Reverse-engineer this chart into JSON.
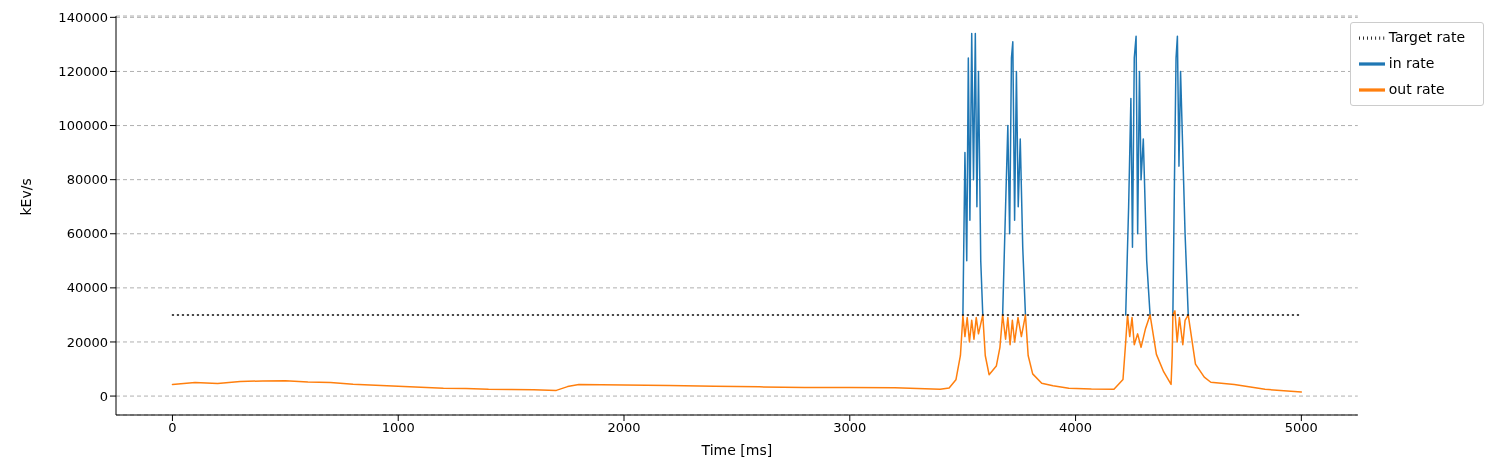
{
  "chart_data": {
    "type": "line",
    "xlabel": "Time [ms]",
    "ylabel": "kEv/s",
    "xlim": [
      -250,
      5250
    ],
    "xticks": [
      0,
      1000,
      2000,
      3000,
      4000,
      5000
    ],
    "ylim": [
      -7000,
      140500
    ],
    "yticks": [
      0,
      20000,
      40000,
      60000,
      80000,
      100000,
      120000,
      140000
    ],
    "grid": "y",
    "legend": "top right",
    "marker": "none",
    "series": [
      {
        "name": "in rate",
        "color": "#1f77b4",
        "line_style": "solid",
        "x": [
          3501,
          3510,
          3518,
          3525,
          3532,
          3540,
          3548,
          3556,
          3563,
          3570,
          3580,
          3589,
          3630,
          3677,
          3690,
          3700,
          3708,
          3716,
          3722,
          3730,
          3738,
          3746,
          3755,
          3766,
          3778,
          4000,
          4222,
          4235,
          4245,
          4252,
          4260,
          4268,
          4275,
          4283,
          4290,
          4300,
          4315,
          4330,
          4380,
          4431,
          4438,
          4445,
          4451,
          4458,
          4465,
          4475,
          4485,
          4499
        ],
        "values": [
          30000,
          90000,
          50000,
          125000,
          65000,
          134000,
          80000,
          134000,
          70000,
          120000,
          50000,
          30000,
          null,
          30000,
          70000,
          100000,
          60000,
          125000,
          131000,
          65000,
          120000,
          70000,
          95000,
          55000,
          30000,
          null,
          30000,
          70000,
          110000,
          55000,
          125000,
          133000,
          60000,
          120000,
          80000,
          95000,
          50000,
          30000,
          null,
          30000,
          80000,
          125000,
          133000,
          85000,
          120000,
          90000,
          60000,
          30000
        ]
      },
      {
        "name": "out rate",
        "color": "#ff7f0e",
        "line_style": "solid",
        "x": [
          0,
          100,
          200,
          300,
          400,
          500,
          600,
          700,
          800,
          900,
          1000,
          1100,
          1200,
          1300,
          1400,
          1500,
          1600,
          1700,
          1750,
          1800,
          1900,
          2000,
          2200,
          2400,
          2600,
          2800,
          3000,
          3200,
          3400,
          3440,
          3470,
          3490,
          3501,
          3510,
          3520,
          3530,
          3540,
          3550,
          3560,
          3570,
          3589,
          3600,
          3617,
          3649,
          3665,
          3677,
          3690,
          3700,
          3710,
          3720,
          3730,
          3745,
          3760,
          3778,
          3790,
          3810,
          3850,
          3900,
          3970,
          4070,
          4170,
          4210,
          4222,
          4230,
          4240,
          4250,
          4260,
          4275,
          4290,
          4310,
          4330,
          4358,
          4390,
          4423,
          4428,
          4431,
          4440,
          4450,
          4460,
          4475,
          4485,
          4499,
          4531,
          4570,
          4599,
          4703,
          4839,
          5000
        ],
        "values": [
          4300,
          5000,
          4600,
          5400,
          5600,
          5700,
          5200,
          5000,
          4400,
          4000,
          3600,
          3300,
          2900,
          2800,
          2500,
          2400,
          2300,
          2100,
          3500,
          4300,
          4200,
          4100,
          3900,
          3600,
          3400,
          3200,
          3200,
          3100,
          2500,
          3000,
          6000,
          15000,
          29700,
          22000,
          29000,
          20000,
          28000,
          21000,
          29000,
          23000,
          30000,
          15000,
          7900,
          11100,
          18000,
          30000,
          21000,
          29000,
          19000,
          28000,
          20000,
          29000,
          22000,
          30000,
          15000,
          8200,
          4700,
          3800,
          2900,
          2600,
          2500,
          6100,
          20000,
          30000,
          22000,
          29000,
          19000,
          23000,
          18000,
          25000,
          30000,
          15400,
          9000,
          4300,
          15000,
          30000,
          31500,
          20000,
          29000,
          19000,
          28000,
          30000,
          11800,
          7000,
          5100,
          4300,
          2500,
          1500
        ]
      },
      {
        "name": "Target rate",
        "color": "#000000",
        "line_style": "dotted",
        "x": [
          0,
          5000
        ],
        "values": [
          30000,
          30000
        ]
      }
    ]
  }
}
